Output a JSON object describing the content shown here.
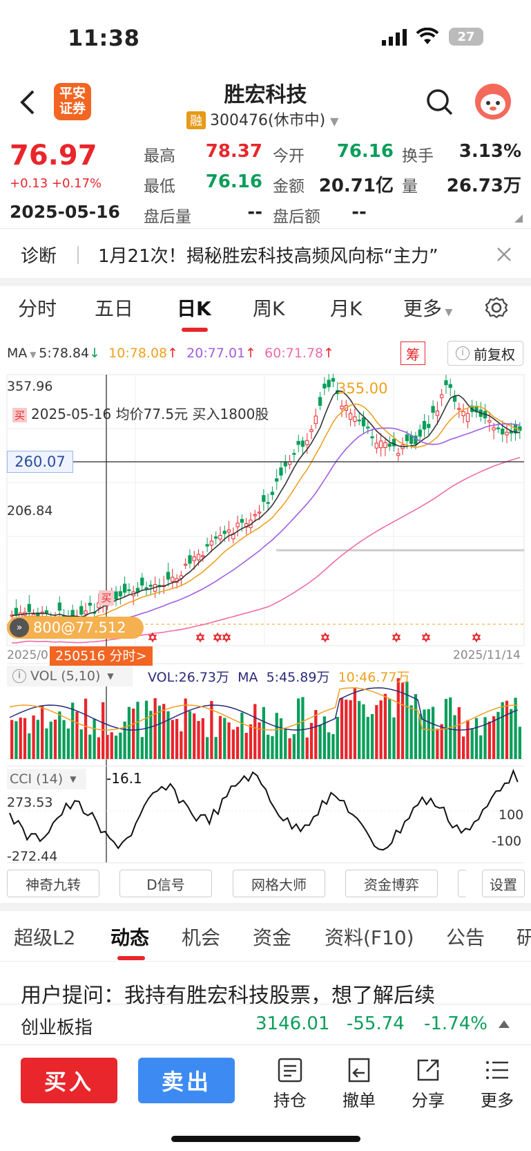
{
  "status_bar": {
    "time": "11:38",
    "battery": "27"
  },
  "header": {
    "logo_text_1": "平安",
    "logo_text_2": "证券",
    "title": "胜宏科技",
    "badge": "融",
    "subtitle": "300476(休市中)"
  },
  "quote": {
    "price": "76.97",
    "change": "+0.13 +0.17%",
    "date": "2025-05-16",
    "high_label": "最高",
    "high": "78.37",
    "open_label": "今开",
    "open": "76.16",
    "turnover_label": "换手",
    "turnover": "3.13%",
    "low_label": "最低",
    "low": "76.16",
    "amount_label": "金额",
    "amount": "20.71亿",
    "volume_label": "量",
    "volume": "26.73万",
    "after_vol_label": "盘后量",
    "after_vol": "--",
    "after_amt_label": "盘后额",
    "after_amt": "--"
  },
  "news": {
    "tag": "诊断",
    "text": "1月21次！揭秘胜宏科技高频风向标“主力”"
  },
  "ktabs": [
    "分时",
    "五日",
    "日K",
    "周K",
    "月K",
    "更多"
  ],
  "ma_bar": {
    "label": "MA",
    "ma5": "5:78.84",
    "ma10": "10:78.08",
    "ma20": "20:77.01",
    "ma60": "60:71.78",
    "chip": "筹",
    "fq": "前复权",
    "colors": {
      "ma5": "#333333",
      "ma10": "#f0a020",
      "ma20": "#a25ce0",
      "ma60": "#f06aa8"
    }
  },
  "kchart": {
    "y_top": "357.96",
    "y_mid": "206.84",
    "cursor_price": "260.07",
    "peak": "355.00",
    "trade_note": "2025-05-16 均价77.5元 买入1800股",
    "buy_tag": "买",
    "buy_tag2": "买",
    "position_text": "800@77.512",
    "left_date": "2025/0",
    "right_date": "2025/11/14",
    "cursor_date": "250516 分时>"
  },
  "vol": {
    "label": "VOL (5,10)",
    "vol": "VOL:26.73万",
    "ma": "MA",
    "ma5": "5:45.89万",
    "ma10": "10:46.77万"
  },
  "cci": {
    "label": "CCI (14)",
    "value": "-16.1",
    "y_top": "273.53",
    "y_bottom": "-272.44",
    "l100": "100",
    "lm100": "-100"
  },
  "chips": [
    "神奇九转",
    "D信号",
    "网格大师",
    "资金博弈",
    "设置"
  ],
  "btabs": [
    "超级L2",
    "动态",
    "机会",
    "资金",
    "资料(F10)",
    "公告",
    "研"
  ],
  "feed": {
    "text": "用户提问：我持有胜宏科技股票，想了解后续"
  },
  "index": {
    "name": "创业板指",
    "value": "3146.01",
    "change": "-55.74",
    "pct": "-1.74%"
  },
  "actions": {
    "buy": "买入",
    "sell": "卖出",
    "hold": "持仓",
    "cancel": "撤单",
    "share": "分享",
    "more": "更多"
  }
}
